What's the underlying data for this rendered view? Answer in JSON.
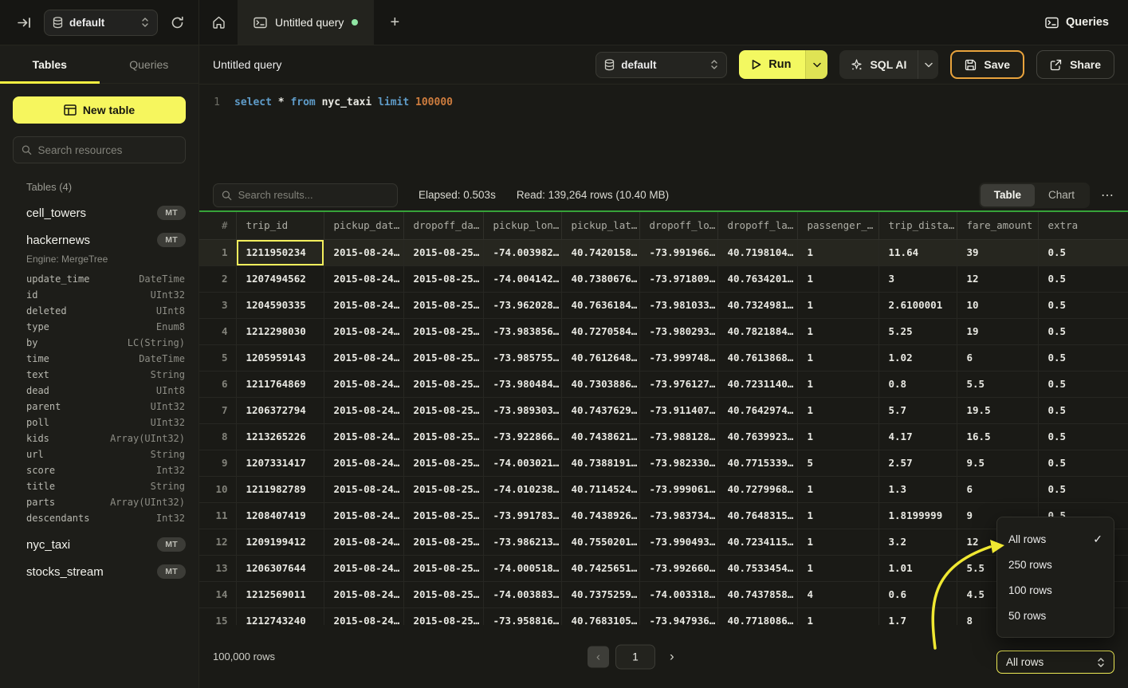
{
  "icons": {
    "refresh": "↻",
    "plus": "+",
    "play": "▷",
    "check": "✓",
    "ellipsis": "⋯",
    "chevron_left": "‹",
    "chevron_right": "›"
  },
  "topbar": {
    "database_selector_value": "default",
    "tab_title": "Untitled query",
    "queries_button_label": "Queries"
  },
  "sidebar": {
    "tabs": {
      "tables": "Tables",
      "queries": "Queries"
    },
    "new_table_label": "New table",
    "search_placeholder": "Search resources",
    "section_title": "Tables (4)",
    "badge": "MT",
    "tables": [
      {
        "name": "cell_towers",
        "badge": "MT"
      },
      {
        "name": "hackernews",
        "badge": "MT",
        "engine": "Engine: MergeTree",
        "columns": [
          [
            "update_time",
            "DateTime"
          ],
          [
            "id",
            "UInt32"
          ],
          [
            "deleted",
            "UInt8"
          ],
          [
            "type",
            "Enum8"
          ],
          [
            "by",
            "LC(String)"
          ],
          [
            "time",
            "DateTime"
          ],
          [
            "text",
            "String"
          ],
          [
            "dead",
            "UInt8"
          ],
          [
            "parent",
            "UInt32"
          ],
          [
            "poll",
            "UInt32"
          ],
          [
            "kids",
            "Array(UInt32)"
          ],
          [
            "url",
            "String"
          ],
          [
            "score",
            "Int32"
          ],
          [
            "title",
            "String"
          ],
          [
            "parts",
            "Array(UInt32)"
          ],
          [
            "descendants",
            "Int32"
          ]
        ]
      },
      {
        "name": "nyc_taxi",
        "badge": "MT"
      },
      {
        "name": "stocks_stream",
        "badge": "MT"
      }
    ]
  },
  "query": {
    "title": "Untitled query",
    "editor": {
      "line_number": "1",
      "tokens": [
        {
          "t": "select",
          "c": "kw"
        },
        {
          "t": " ",
          "c": "pl"
        },
        {
          "t": "*",
          "c": "op"
        },
        {
          "t": " ",
          "c": "pl"
        },
        {
          "t": "from",
          "c": "kw"
        },
        {
          "t": " ",
          "c": "pl"
        },
        {
          "t": "nyc_taxi",
          "c": "id"
        },
        {
          "t": " ",
          "c": "pl"
        },
        {
          "t": "limit",
          "c": "kw"
        },
        {
          "t": " ",
          "c": "pl"
        },
        {
          "t": "100000",
          "c": "num"
        }
      ]
    },
    "toolbar": {
      "database_selector_value": "default",
      "run_label": "Run",
      "sql_ai_label": "SQL AI",
      "save_label": "Save",
      "share_label": "Share"
    }
  },
  "results": {
    "search_placeholder": "Search results...",
    "elapsed": "Elapsed: 0.503s",
    "read": "Read: 139,264 rows (10.40 MB)",
    "view_toggle": {
      "table": "Table",
      "chart": "Chart"
    },
    "columns": [
      "#",
      "trip_id",
      "pickup_dat…",
      "dropoff_da…",
      "pickup_lon…",
      "pickup_lat…",
      "dropoff_lo…",
      "dropoff_la…",
      "passenger_…",
      "trip_dista…",
      "fare_amount",
      "extra"
    ],
    "rows": [
      [
        "1",
        "1211950234",
        "2015-08-24…",
        "2015-08-25…",
        "-74.003982…",
        "40.7420158…",
        "-73.991966…",
        "40.7198104…",
        "1",
        "11.64",
        "39",
        "0.5"
      ],
      [
        "2",
        "1207494562",
        "2015-08-24…",
        "2015-08-25…",
        "-74.004142…",
        "40.7380676…",
        "-73.971809…",
        "40.7634201…",
        "1",
        "3",
        "12",
        "0.5"
      ],
      [
        "3",
        "1204590335",
        "2015-08-24…",
        "2015-08-25…",
        "-73.962028…",
        "40.7636184…",
        "-73.981033…",
        "40.7324981…",
        "1",
        "2.6100001",
        "10",
        "0.5"
      ],
      [
        "4",
        "1212298030",
        "2015-08-24…",
        "2015-08-25…",
        "-73.983856…",
        "40.7270584…",
        "-73.980293…",
        "40.7821884…",
        "1",
        "5.25",
        "19",
        "0.5"
      ],
      [
        "5",
        "1205959143",
        "2015-08-24…",
        "2015-08-25…",
        "-73.985755…",
        "40.7612648…",
        "-73.999748…",
        "40.7613868…",
        "1",
        "1.02",
        "6",
        "0.5"
      ],
      [
        "6",
        "1211764869",
        "2015-08-24…",
        "2015-08-25…",
        "-73.980484…",
        "40.7303886…",
        "-73.976127…",
        "40.7231140…",
        "1",
        "0.8",
        "5.5",
        "0.5"
      ],
      [
        "7",
        "1206372794",
        "2015-08-24…",
        "2015-08-25…",
        "-73.989303…",
        "40.7437629…",
        "-73.911407…",
        "40.7642974…",
        "1",
        "5.7",
        "19.5",
        "0.5"
      ],
      [
        "8",
        "1213265226",
        "2015-08-24…",
        "2015-08-25…",
        "-73.922866…",
        "40.7438621…",
        "-73.988128…",
        "40.7639923…",
        "1",
        "4.17",
        "16.5",
        "0.5"
      ],
      [
        "9",
        "1207331417",
        "2015-08-24…",
        "2015-08-25…",
        "-74.003021…",
        "40.7388191…",
        "-73.982330…",
        "40.7715339…",
        "5",
        "2.57",
        "9.5",
        "0.5"
      ],
      [
        "10",
        "1211982789",
        "2015-08-24…",
        "2015-08-25…",
        "-74.010238…",
        "40.7114524…",
        "-73.999061…",
        "40.7279968…",
        "1",
        "1.3",
        "6",
        "0.5"
      ],
      [
        "11",
        "1208407419",
        "2015-08-24…",
        "2015-08-25…",
        "-73.991783…",
        "40.7438926…",
        "-73.983734…",
        "40.7648315…",
        "1",
        "1.8199999",
        "9",
        "0.5"
      ],
      [
        "12",
        "1209199412",
        "2015-08-24…",
        "2015-08-25…",
        "-73.986213…",
        "40.7550201…",
        "-73.990493…",
        "40.7234115…",
        "1",
        "3.2",
        "12",
        "0.5"
      ],
      [
        "13",
        "1206307644",
        "2015-08-24…",
        "2015-08-25…",
        "-74.000518…",
        "40.7425651…",
        "-73.992660…",
        "40.7533454…",
        "1",
        "1.01",
        "5.5",
        "0.5"
      ],
      [
        "14",
        "1212569011",
        "2015-08-24…",
        "2015-08-25…",
        "-74.003883…",
        "40.7375259…",
        "-74.003318…",
        "40.7437858…",
        "4",
        "0.6",
        "4.5",
        "0.5"
      ],
      [
        "15",
        "1212743240",
        "2015-08-24…",
        "2015-08-25…",
        "-73.958816…",
        "40.7683105…",
        "-73.947936…",
        "40.7718086…",
        "1",
        "1.7",
        "8",
        "0.5"
      ]
    ],
    "footer": {
      "total_rows": "100,000 rows",
      "page_number": "1"
    },
    "page_size": {
      "selected": "All rows",
      "options": [
        "All rows",
        "250 rows",
        "100 rows",
        "50 rows"
      ],
      "checked_option": "All rows"
    }
  },
  "colors": {
    "accent_yellow": "#f6f65e",
    "save_border_orange": "#e9a33c",
    "result_green_bar": "#36a339",
    "unsaved_dot_green": "#90e6a4",
    "code_keyword_blue": "#5f9cc9",
    "code_number_orange": "#cd7c3e"
  }
}
